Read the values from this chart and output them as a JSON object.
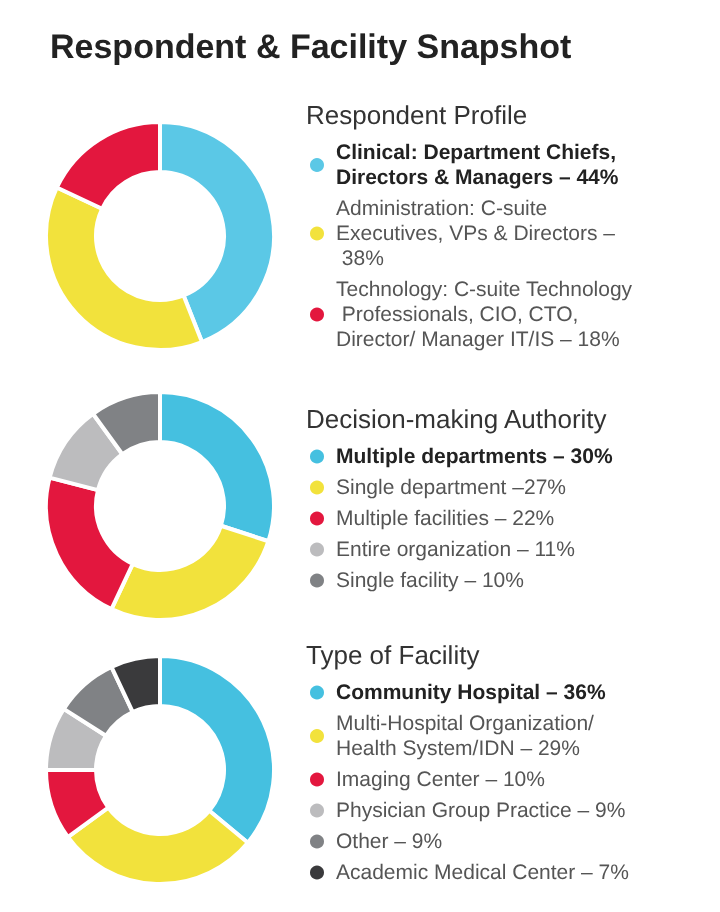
{
  "chart_data": [
    {
      "type": "donut",
      "title": "Respondent & Facility Snapshot",
      "subtitle": "Respondent Profile",
      "legend": "right",
      "categories": [
        "Clinical: Department Chiefs, Directors & Managers – 44%",
        "Administration: C-suite Executives, VPs & Directors – 38%",
        "Technology: C-suite Technology Professionals, CIO, CTO, Director/ Manager IT/IS – 18%"
      ],
      "values": [
        44,
        38,
        18
      ],
      "colors": [
        "#5bc8e6",
        "#f2e23c",
        "#e3173e"
      ]
    },
    {
      "type": "donut",
      "subtitle": "Decision-making Authority",
      "legend": "right",
      "categories": [
        "Multiple departments – 30%",
        "Single department –27%",
        "Multiple facilities – 22%",
        "Entire organization – 11%",
        "Single facility – 10%"
      ],
      "values": [
        30,
        27,
        22,
        11,
        10
      ],
      "colors": [
        "#45c0e0",
        "#f2e23c",
        "#e3173e",
        "#bcbcbe",
        "#808285"
      ]
    },
    {
      "type": "donut",
      "subtitle": "Type of Facility",
      "legend": "right",
      "categories": [
        "Community Hospital – 36%",
        "Multi-Hospital Organization/Health System/IDN – 29%",
        "Imaging Center – 10%",
        "Physician Group Practice – 9%",
        "Other – 9%",
        "Academic Medical Center – 7%"
      ],
      "values": [
        36,
        29,
        10,
        9,
        9,
        7
      ],
      "colors": [
        "#45c0e0",
        "#f2e23c",
        "#e3173e",
        "#bcbcbe",
        "#808285",
        "#3a3a3c"
      ]
    }
  ]
}
